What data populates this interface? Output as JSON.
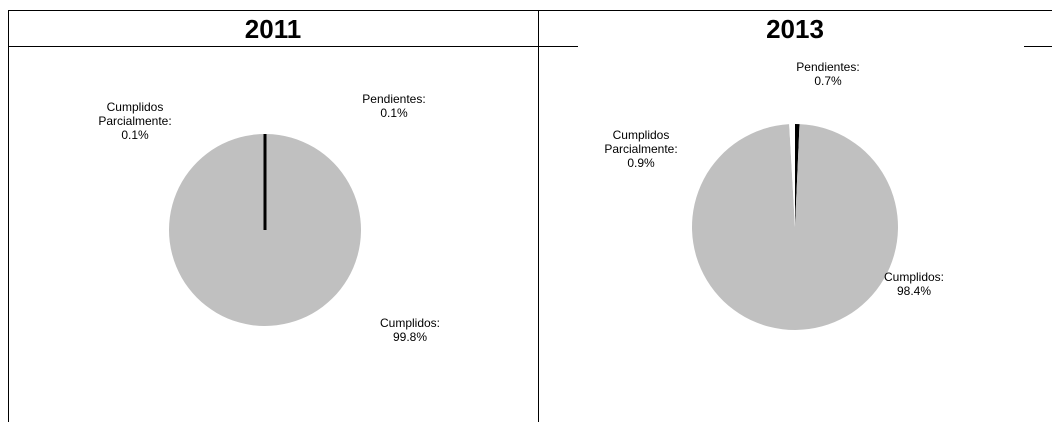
{
  "chart_data": [
    {
      "type": "pie",
      "title": "2011",
      "slices": [
        {
          "name": "Cumplidos",
          "name_lines": [
            "Cumplidos:"
          ],
          "value": 99.8,
          "label": "99.8%",
          "color": "#c0c0c0"
        },
        {
          "name": "Cumplidos Parcialmente",
          "name_lines": [
            "Cumplidos",
            "Parcialmente:"
          ],
          "value": 0.1,
          "label": "0.1%",
          "color": "#ffffff"
        },
        {
          "name": "Pendientes",
          "name_lines": [
            "Pendientes:"
          ],
          "value": 0.1,
          "label": "0.1%",
          "color": "#000000"
        }
      ]
    },
    {
      "type": "pie",
      "title": "2013",
      "slices": [
        {
          "name": "Cumplidos",
          "name_lines": [
            "Cumplidos:"
          ],
          "value": 98.4,
          "label": "98.4%",
          "color": "#c0c0c0"
        },
        {
          "name": "Cumplidos Parcialmente",
          "name_lines": [
            "Cumplidos",
            "Parcialmente:"
          ],
          "value": 0.9,
          "label": "0.9%",
          "color": "#ffffff"
        },
        {
          "name": "Pendientes",
          "name_lines": [
            "Pendientes:"
          ],
          "value": 0.7,
          "label": "0.7%",
          "color": "#000000"
        }
      ]
    }
  ]
}
